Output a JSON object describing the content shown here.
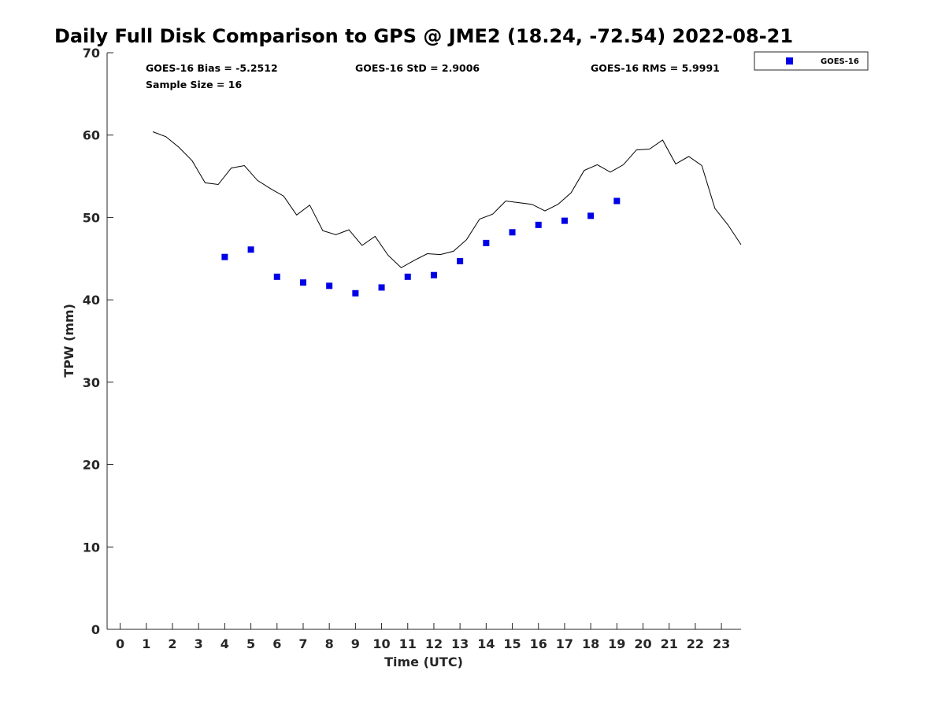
{
  "chart_data": {
    "type": "scatter",
    "title": "Daily Full Disk Comparison to GPS @ JME2 (18.24, -72.54) 2022-08-21",
    "xlabel": "Time (UTC)",
    "ylabel": "TPW (mm)",
    "xlim": [
      -0.5,
      23.75
    ],
    "ylim": [
      0,
      70
    ],
    "xticks": [
      0,
      1,
      2,
      3,
      4,
      5,
      6,
      7,
      8,
      9,
      10,
      11,
      12,
      13,
      14,
      15,
      16,
      17,
      18,
      19,
      20,
      21,
      22,
      23
    ],
    "yticks": [
      0,
      10,
      20,
      30,
      40,
      50,
      60,
      70
    ],
    "grid": false,
    "legend_position": "top-right (outside)",
    "stats": {
      "bias": "GOES-16 Bias = -5.2512",
      "std": "GOES-16 StD = 2.9006",
      "rms": "GOES-16 RMS = 5.9991",
      "sample_size": "Sample Size = 16"
    },
    "series": [
      {
        "name": "GOES-16",
        "kind": "scatter",
        "marker": "square",
        "color": "#0000e6",
        "x": [
          4,
          5,
          6,
          7,
          8,
          9,
          10,
          11,
          12,
          13,
          14,
          15,
          16,
          17,
          18,
          19
        ],
        "y": [
          45.2,
          46.1,
          42.8,
          42.1,
          41.7,
          40.8,
          41.5,
          42.8,
          43.0,
          44.7,
          46.9,
          48.2,
          49.1,
          49.6,
          50.2,
          52.0
        ]
      },
      {
        "kind": "line",
        "color": "#000000",
        "x": [
          1.25,
          1.75,
          2.25,
          2.75,
          3.25,
          3.75,
          4.25,
          4.75,
          5.25,
          5.75,
          6.25,
          6.75,
          7.25,
          7.75,
          8.25,
          8.75,
          9.25,
          9.75,
          10.25,
          10.75,
          11.25,
          11.75,
          12.25,
          12.75,
          13.25,
          13.75,
          14.25,
          14.75,
          15.25,
          15.75,
          16.25,
          16.75,
          17.25,
          17.75,
          18.25,
          18.75,
          19.25,
          19.75,
          20.25,
          20.75,
          21.25,
          21.75,
          22.25,
          22.75,
          23.25,
          23.75
        ],
        "y": [
          60.4,
          59.8,
          58.5,
          56.9,
          54.2,
          54.0,
          56.0,
          56.3,
          54.5,
          53.5,
          52.6,
          50.3,
          51.5,
          48.4,
          47.9,
          48.5,
          46.6,
          47.7,
          45.4,
          43.9,
          44.8,
          45.6,
          45.5,
          45.9,
          47.3,
          49.8,
          50.4,
          52.0,
          51.8,
          51.6,
          50.8,
          51.6,
          53.0,
          55.7,
          56.4,
          55.5,
          56.4,
          58.2,
          58.3,
          59.4,
          56.5,
          57.4,
          56.3,
          51.1,
          49.1,
          46.7
        ]
      }
    ]
  }
}
